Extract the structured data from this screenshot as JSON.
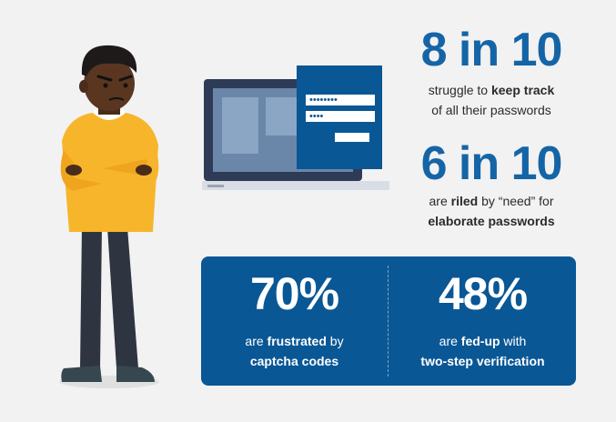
{
  "stats": [
    {
      "big": "8 in 10",
      "pre": "struggle to ",
      "bold": "keep track",
      "line2": "of all their passwords"
    },
    {
      "big": "6 in 10",
      "pre": "are ",
      "bold": "riled",
      "post": " by “need” for",
      "line2": "elaborate passwords"
    }
  ],
  "panel": {
    "left": {
      "big": "70%",
      "pre": "are ",
      "bold": "frustrated",
      "post": " by",
      "line2": "captcha codes"
    },
    "right": {
      "big": "48%",
      "pre": "are ",
      "bold": "fed-up",
      "post": " with",
      "line2": "two-step verification"
    }
  },
  "login_window": {
    "password1": "••••••••",
    "password2": "••••"
  },
  "colors": {
    "accent": "#1565a6",
    "panel": "#0a5795",
    "shirt": "#f7b52b",
    "pants": "#2e3540"
  }
}
